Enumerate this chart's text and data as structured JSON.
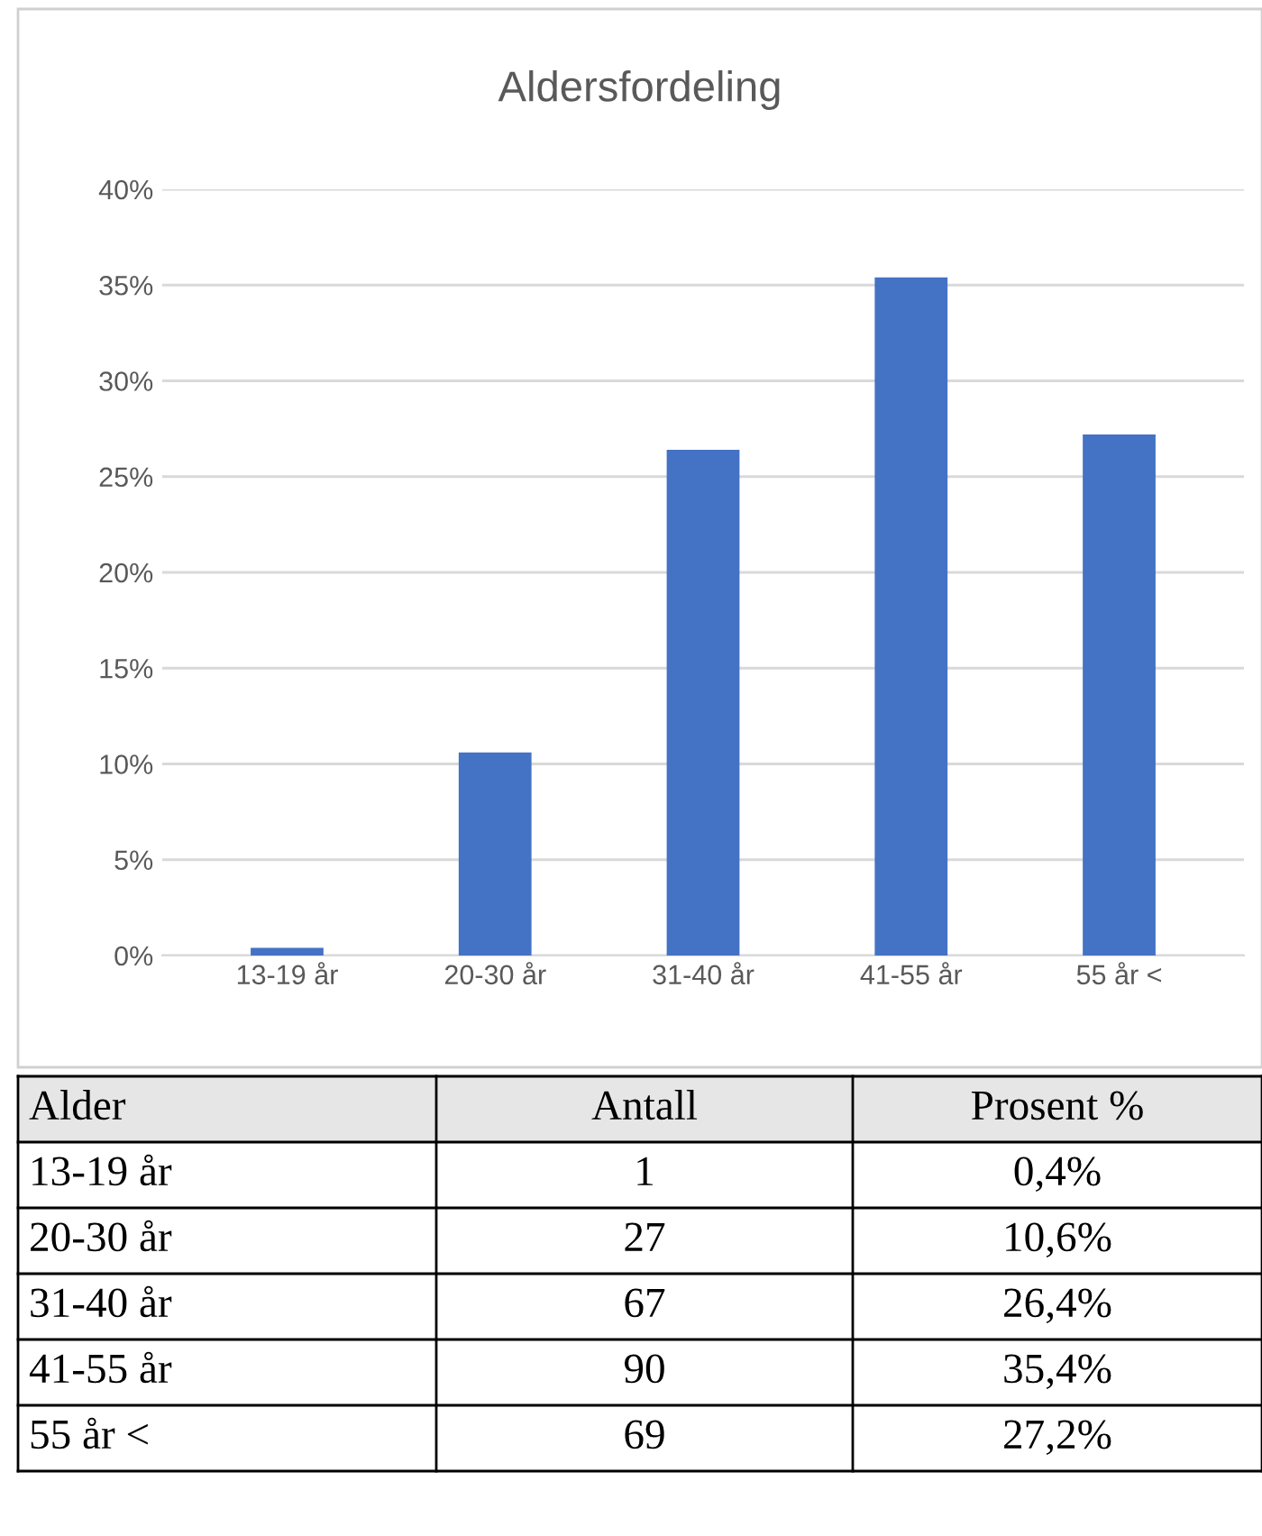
{
  "chart_data": {
    "type": "bar",
    "title": "Aldersfordeling",
    "categories": [
      "13-19 år",
      "20-30 år",
      "31-40 år",
      "41-55 år",
      "55 år <"
    ],
    "values": [
      0.4,
      10.6,
      26.4,
      35.4,
      27.2
    ],
    "annotations": [
      "Alder",
      "Antall",
      "Prosent %",
      "1",
      "27",
      "67",
      "90",
      "69",
      "0,4%",
      "10,6%",
      "26,4%",
      "35,4%",
      "27,2%"
    ],
    "color": "#4472c4",
    "ylim": [
      0,
      40
    ],
    "yticks": [
      {
        "value": 0,
        "label": "0%"
      },
      {
        "value": 5,
        "label": "5%"
      },
      {
        "value": 10,
        "label": "10%"
      },
      {
        "value": 15,
        "label": "15%"
      },
      {
        "value": 20,
        "label": "20%"
      },
      {
        "value": 25,
        "label": "25%"
      },
      {
        "value": 30,
        "label": "30%"
      },
      {
        "value": 35,
        "label": "35%"
      },
      {
        "value": 40,
        "label": "40%"
      }
    ],
    "grid": "y",
    "legend": false
  }
}
